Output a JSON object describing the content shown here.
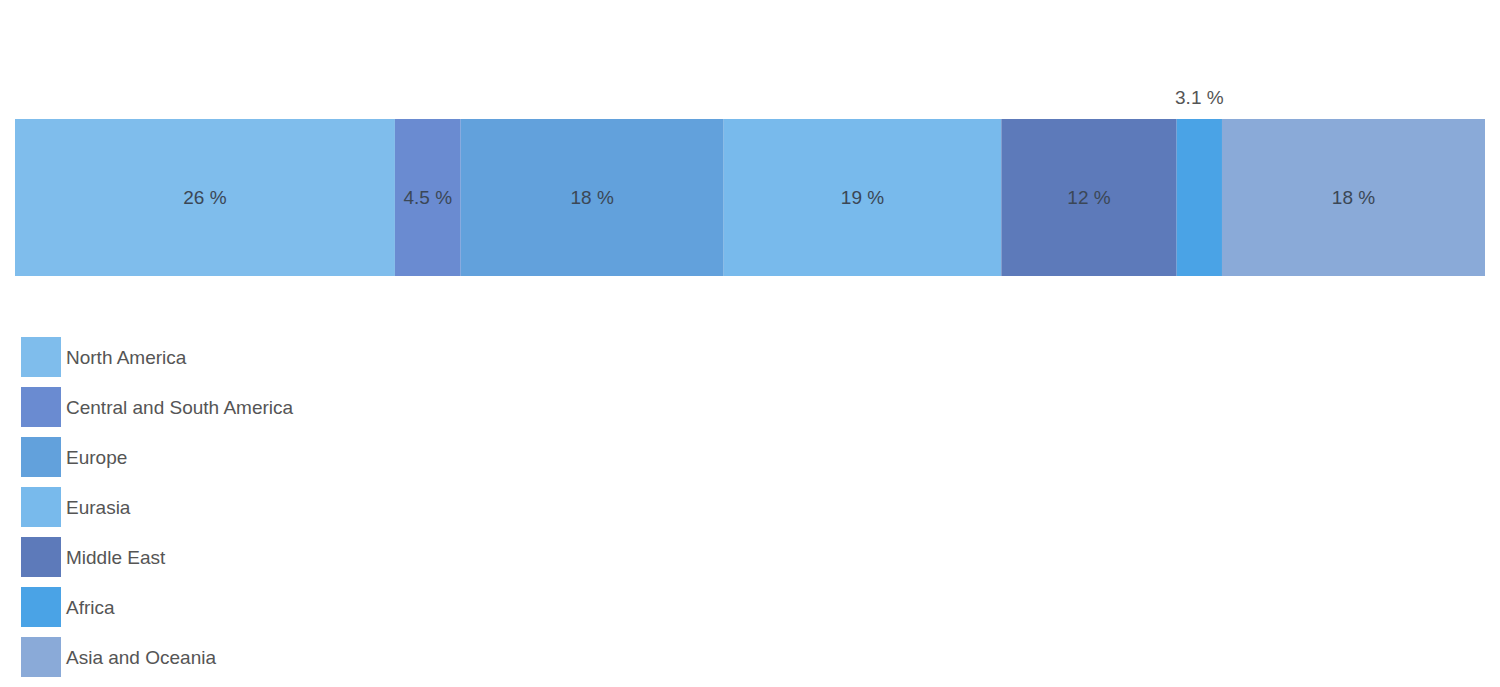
{
  "chart_data": {
    "type": "bar",
    "orientation": "horizontal",
    "stacked": true,
    "data_labels": true,
    "tick_labels": false,
    "legend": "bottom-left",
    "categories": [
      null
    ],
    "xlim": [
      0,
      100.6
    ],
    "series": [
      {
        "name": "North America",
        "color": "#7fbdec",
        "values": [
          26
        ],
        "value_labels": [
          "26 %"
        ]
      },
      {
        "name": "Central and South America",
        "color": "#6a8bd1",
        "values": [
          4.5
        ],
        "value_labels": [
          "4.5 %"
        ]
      },
      {
        "name": "Europe",
        "color": "#62a1dc",
        "values": [
          18
        ],
        "value_labels": [
          "18 %"
        ]
      },
      {
        "name": "Eurasia",
        "color": "#78baec",
        "values": [
          19
        ],
        "value_labels": [
          "19 %"
        ]
      },
      {
        "name": "Middle East",
        "color": "#5d7aba",
        "values": [
          12
        ],
        "value_labels": [
          "12 %"
        ]
      },
      {
        "name": "Africa",
        "color": "#4aa3e6",
        "values": [
          3.1
        ],
        "value_labels": [
          "3.1 %"
        ]
      },
      {
        "name": "Asia and Oceania",
        "color": "#8aaad8",
        "values": [
          18
        ],
        "value_labels": [
          "18 %"
        ]
      }
    ]
  }
}
